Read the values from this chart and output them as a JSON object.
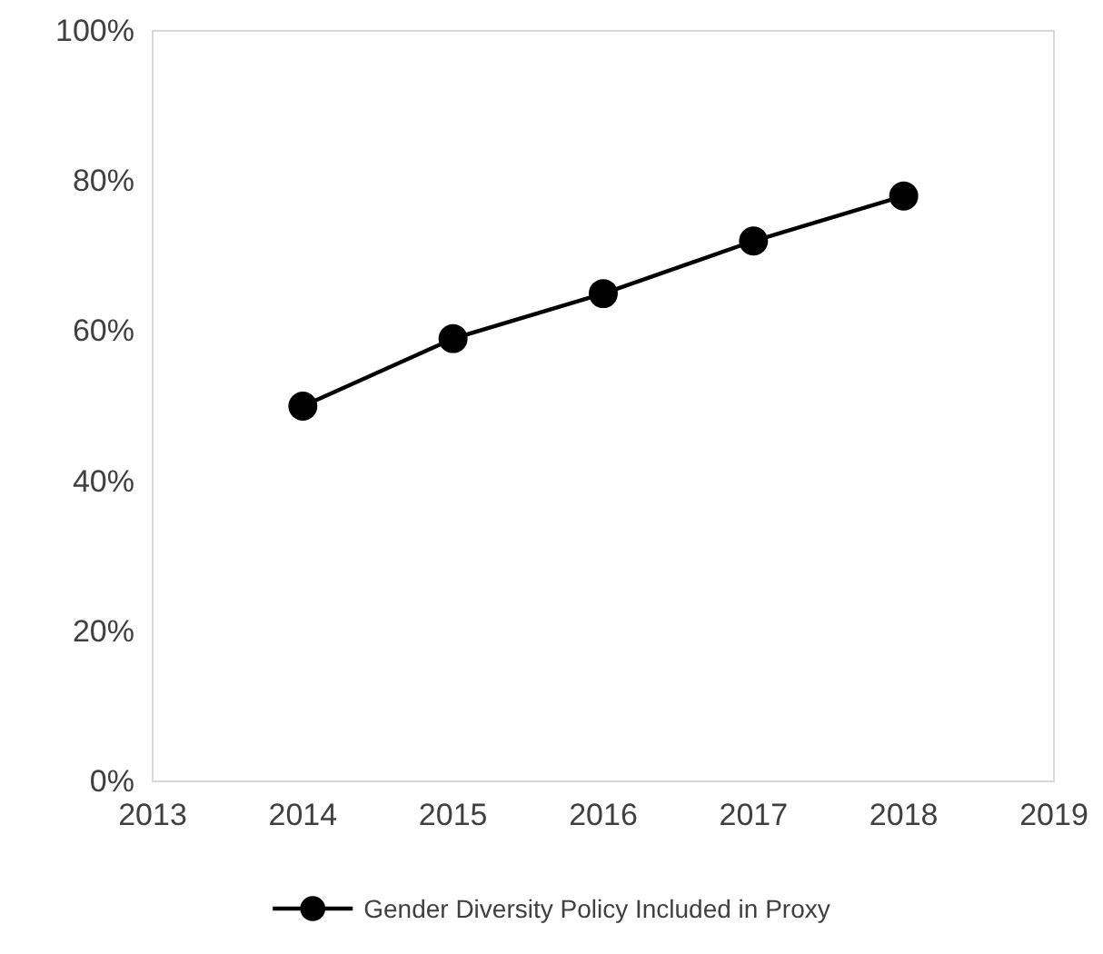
{
  "chart_data": {
    "type": "line",
    "x": [
      2014,
      2015,
      2016,
      2017,
      2018
    ],
    "series": [
      {
        "name": "Gender Diversity Policy Included in Proxy",
        "color": "#000000",
        "values": [
          50,
          59,
          65,
          72,
          78
        ]
      }
    ],
    "xlim": [
      2013,
      2019
    ],
    "xticks": [
      2013,
      2014,
      2015,
      2016,
      2017,
      2018,
      2019
    ],
    "ylim": [
      0,
      100
    ],
    "yticks": [
      {
        "value": 0,
        "label": "0%"
      },
      {
        "value": 20,
        "label": "20%"
      },
      {
        "value": 40,
        "label": "40%"
      },
      {
        "value": 60,
        "label": "60%"
      },
      {
        "value": 80,
        "label": "80%"
      },
      {
        "value": 100,
        "label": "100%"
      }
    ],
    "grid": false,
    "legend": "bottom",
    "marker": "circle",
    "line_style": "solid"
  }
}
